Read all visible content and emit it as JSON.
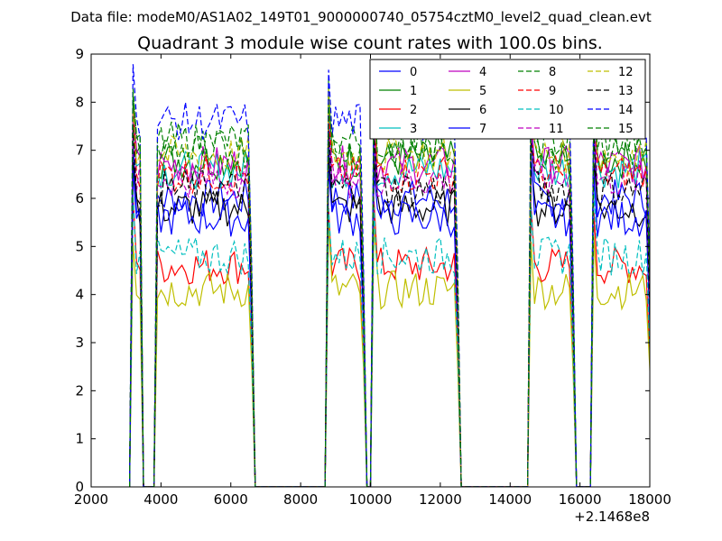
{
  "header": {
    "file_label": "Data file: modeM0/AS1A02_149T01_9000000740_05754cztM0_level2_quad_clean.evt"
  },
  "chart_data": {
    "type": "line",
    "title": "Quadrant 3 module wise count rates with 100.0s bins.",
    "xlabel": "",
    "ylabel": "",
    "x_offset_label": "+2.1468e8",
    "xlim": [
      2000,
      18000
    ],
    "ylim": [
      0,
      9
    ],
    "x_ticks": [
      2000,
      4000,
      6000,
      8000,
      10000,
      12000,
      14000,
      16000,
      18000
    ],
    "y_ticks": [
      0,
      1,
      2,
      3,
      4,
      5,
      6,
      7,
      8,
      9
    ],
    "grid": false,
    "legend_position": "top-right",
    "segments": [
      {
        "start": 3200,
        "end": 6600,
        "dip": [
          3500,
          3800
        ]
      },
      {
        "start": 8800,
        "end": 9800
      },
      {
        "start": 10100,
        "end": 12500
      },
      {
        "start": 14600,
        "end": 15800
      },
      {
        "start": 16400,
        "end": 18000
      }
    ],
    "series": [
      {
        "name": "0",
        "color": "#0000ff",
        "dash": "solid",
        "level": 6.0
      },
      {
        "name": "1",
        "color": "#008000",
        "dash": "solid",
        "level": 6.8
      },
      {
        "name": "2",
        "color": "#ff0000",
        "dash": "solid",
        "level": 4.6
      },
      {
        "name": "3",
        "color": "#00bfbf",
        "dash": "solid",
        "level": 6.6
      },
      {
        "name": "4",
        "color": "#bf00bf",
        "dash": "solid",
        "level": 6.7
      },
      {
        "name": "5",
        "color": "#bfbf00",
        "dash": "solid",
        "level": 4.1
      },
      {
        "name": "6",
        "color": "#000000",
        "dash": "solid",
        "level": 5.8
      },
      {
        "name": "7",
        "color": "#0000ff",
        "dash": "solid",
        "level": 5.6
      },
      {
        "name": "8",
        "color": "#008000",
        "dash": "dashed",
        "level": 7.2
      },
      {
        "name": "9",
        "color": "#ff0000",
        "dash": "dashed",
        "level": 6.5
      },
      {
        "name": "10",
        "color": "#00bfbf",
        "dash": "dashed",
        "level": 4.8
      },
      {
        "name": "11",
        "color": "#bf00bf",
        "dash": "dashed",
        "level": 6.4
      },
      {
        "name": "12",
        "color": "#bfbf00",
        "dash": "dashed",
        "level": 6.9
      },
      {
        "name": "13",
        "color": "#000000",
        "dash": "dashed",
        "level": 6.2
      },
      {
        "name": "14",
        "color": "#0000ff",
        "dash": "dashed",
        "level": 7.6
      },
      {
        "name": "15",
        "color": "#008000",
        "dash": "dashed",
        "level": 7.0
      }
    ]
  }
}
